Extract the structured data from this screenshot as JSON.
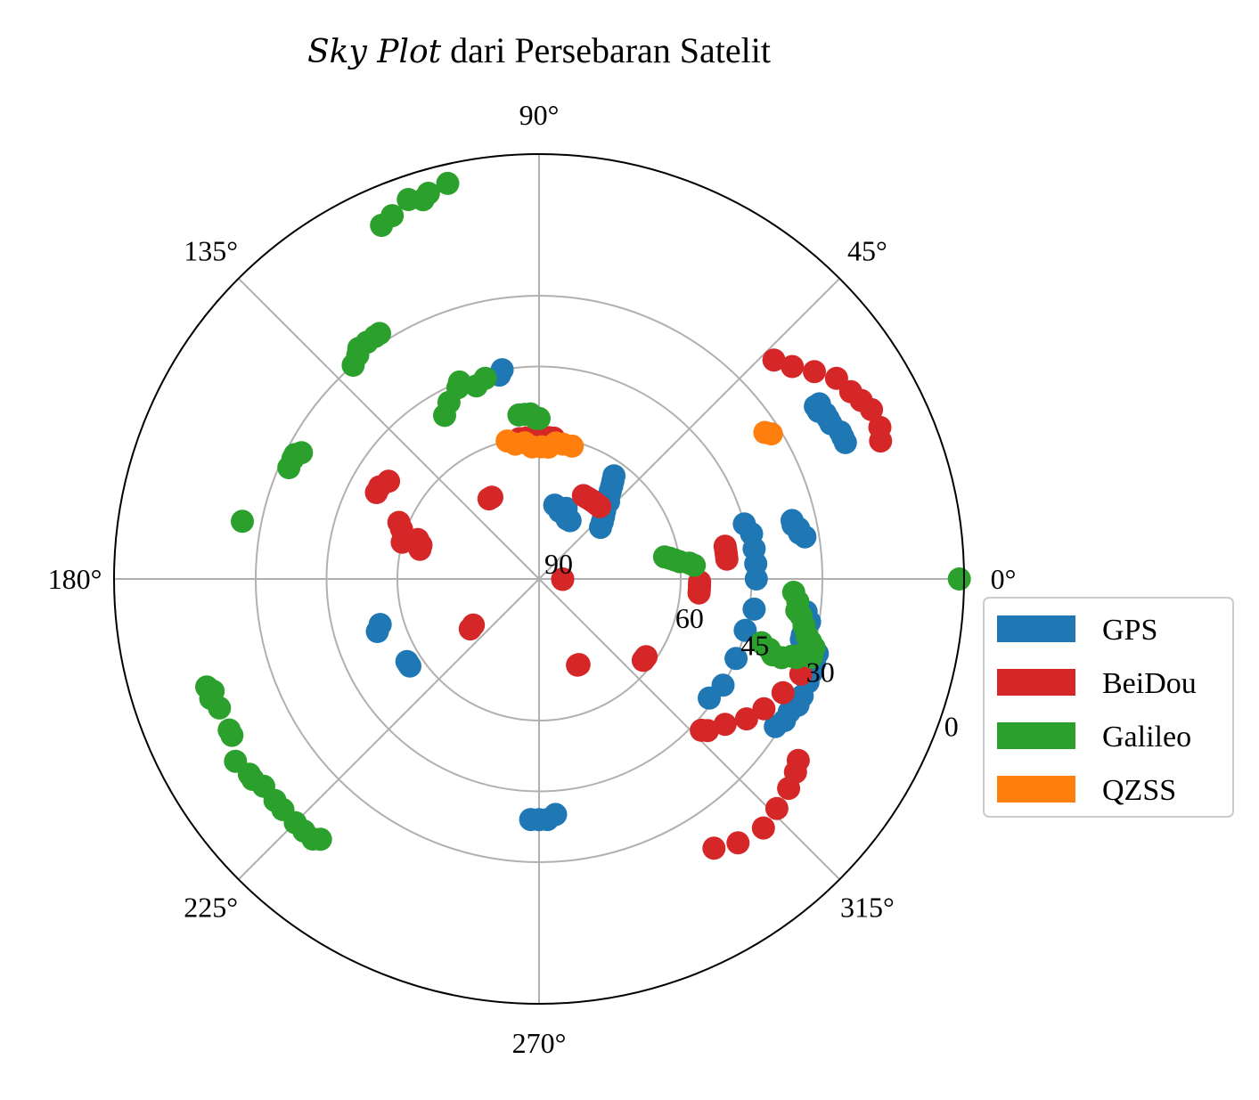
{
  "chart_data": {
    "type": "scatter",
    "projection": "polar",
    "title_italic": "Sky Plot",
    "title_rest": " dari Persebaran Satelit",
    "theta_ticks": [
      {
        "deg": 0,
        "label": "0°"
      },
      {
        "deg": 45,
        "label": "45°"
      },
      {
        "deg": 90,
        "label": "90°"
      },
      {
        "deg": 135,
        "label": "135°"
      },
      {
        "deg": 180,
        "label": "180°"
      },
      {
        "deg": 225,
        "label": "225°"
      },
      {
        "deg": 270,
        "label": "270°"
      },
      {
        "deg": 315,
        "label": "315°"
      }
    ],
    "r_ticks": [
      {
        "elev": 90,
        "label": "90"
      },
      {
        "elev": 60,
        "label": "60"
      },
      {
        "elev": 45,
        "label": "45"
      },
      {
        "elev": 30,
        "label": "30"
      },
      {
        "elev": 0,
        "label": "0"
      }
    ],
    "r_tick_label_angle_deg": -22.5,
    "grid_rings_elev": [
      60,
      45,
      30
    ],
    "grid": true,
    "legend_position": "right",
    "series": [
      {
        "name": "GPS",
        "color": "#1f77b4",
        "tracks": [
          [
            [
              24,
              19
            ],
            [
              25,
              19
            ],
            [
              26,
              19
            ],
            [
              28,
              20
            ],
            [
              29,
              20
            ],
            [
              30,
              20
            ],
            [
              31,
              21
            ],
            [
              32,
              20
            ],
            [
              32,
              21
            ]
          ],
          [
            [
              9,
              33
            ],
            [
              10,
              34
            ],
            [
              11,
              34
            ],
            [
              12,
              35
            ],
            [
              13,
              35
            ]
          ],
          [
            [
              -7,
              33
            ],
            [
              -9,
              32
            ],
            [
              -10,
              33
            ],
            [
              -12,
              33
            ],
            [
              -13,
              33
            ]
          ],
          [
            [
              -15,
              29
            ],
            [
              -17,
              29
            ],
            [
              -19,
              29
            ],
            [
              -21,
              29
            ],
            [
              -24,
              29
            ],
            [
              -26,
              29
            ],
            [
              -28,
              30
            ],
            [
              -30,
              30
            ],
            [
              -32,
              31
            ]
          ],
          [
            [
              268,
              39
            ],
            [
              270,
              39
            ],
            [
              272,
              39
            ],
            [
              274,
              40
            ]
          ],
          [
            [
              214,
              57
            ],
            [
              213,
              57
            ],
            [
              212,
              57
            ]
          ],
          [
            [
              198,
              54
            ],
            [
              196,
              55
            ]
          ],
          [
            [
              100,
              45
            ],
            [
              101,
              46
            ]
          ],
          [
            [
              15,
              45
            ],
            [
              12,
              44
            ],
            [
              8,
              44
            ],
            [
              4,
              44
            ],
            [
              0,
              44
            ]
          ],
          [
            [
              -8,
              44
            ],
            [
              -14,
              45
            ],
            [
              -22,
              45
            ],
            [
              -30,
              45
            ],
            [
              -35,
              46
            ]
          ],
          [
            [
              62,
              76
            ],
            [
              65,
              76
            ],
            [
              69,
              74
            ],
            [
              73,
              75
            ],
            [
              78,
              74
            ]
          ],
          [
            [
              40,
              73
            ],
            [
              42,
              72
            ],
            [
              44,
              71
            ],
            [
              46,
              70
            ],
            [
              48,
              68
            ],
            [
              50,
              67
            ],
            [
              51,
              66
            ],
            [
              52,
              65
            ],
            [
              53,
              64
            ],
            [
              54,
              63
            ]
          ]
        ]
      },
      {
        "name": "BeiDou",
        "color": "#d62728",
        "tracks": [
          [
            [
              50,
              70
            ],
            [
              52,
              70
            ],
            [
              54,
              70
            ],
            [
              56,
              70
            ],
            [
              58,
              70
            ],
            [
              60,
              70
            ],
            [
              62,
              70
            ]
          ],
          [
            [
              84,
              60
            ],
            [
              86,
              60
            ],
            [
              89,
              60
            ],
            [
              92,
              60
            ],
            [
              95,
              60
            ],
            [
              98,
              60
            ]
          ],
          [
            [
              120,
              70
            ],
            [
              122,
              70
            ]
          ],
          [
            [
              147,
              52
            ],
            [
              150,
              51
            ],
            [
              152,
              51
            ]
          ],
          [
            [
              162,
              63
            ],
            [
              164,
              64
            ],
            [
              166,
              64
            ]
          ],
          [
            [
              165,
              60
            ],
            [
              163,
              60
            ],
            [
              160,
              59
            ],
            [
              158,
              58
            ]
          ],
          [
            [
              216,
              72
            ],
            [
              215,
              73
            ]
          ],
          [
            [
              10,
              50
            ],
            [
              9,
              50
            ],
            [
              8,
              50
            ],
            [
              7,
              50
            ],
            [
              6,
              50
            ]
          ],
          [
            [
              -1,
              56
            ],
            [
              -2,
              56
            ],
            [
              -3,
              56
            ],
            [
              -4,
              56
            ],
            [
              -5,
              56
            ]
          ],
          [
            [
              -1,
              85
            ],
            [
              0,
              85
            ]
          ],
          [
            [
              -66,
              70
            ],
            [
              -65,
              70
            ]
          ],
          [
            [
              -38,
              62
            ],
            [
              -37,
              62
            ],
            [
              -36,
              62
            ]
          ],
          [
            [
              -43,
              43
            ],
            [
              -42,
              42
            ],
            [
              -38,
              40
            ],
            [
              -34,
              37
            ],
            [
              -30,
              35
            ],
            [
              -25,
              33
            ],
            [
              -20,
              31
            ]
          ],
          [
            [
              -57,
              22
            ],
            [
              -53,
              20
            ],
            [
              -48,
              19
            ],
            [
              -44,
              20
            ],
            [
              -40,
              21
            ],
            [
              -37,
              22
            ],
            [
              -35,
              23
            ]
          ],
          [
            [
              43,
              22
            ],
            [
              40,
              20
            ],
            [
              37,
              17
            ],
            [
              34,
              14
            ],
            [
              31,
              13
            ],
            [
              29,
              12
            ],
            [
              27,
              11
            ],
            [
              24,
              11
            ],
            [
              22,
              12
            ]
          ]
        ]
      },
      {
        "name": "Galileo",
        "color": "#2ca02c",
        "tracks": [
          [
            [
              90,
              56
            ],
            [
              91,
              56
            ],
            [
              93,
              55
            ],
            [
              95,
              55
            ],
            [
              97,
              55
            ]
          ],
          [
            [
              120,
              50
            ],
            [
              117,
              48
            ],
            [
              113,
              46
            ],
            [
              112,
              45
            ],
            [
              108,
              47
            ],
            [
              105,
              46
            ]
          ],
          [
            [
              131,
              30
            ],
            [
              129,
              29
            ],
            [
              128,
              28
            ],
            [
              126,
              28
            ],
            [
              124,
              28
            ],
            [
              123,
              28
            ]
          ],
          [
            [
              156,
              32
            ],
            [
              154,
              32
            ],
            [
              153,
              32
            ],
            [
              152,
              33
            ]
          ],
          [
            [
              169,
              26
            ]
          ],
          [
            [
              114,
              8
            ],
            [
              112,
              7
            ],
            [
              109,
              5
            ],
            [
              107,
              6
            ],
            [
              106,
              5
            ],
            [
              103,
              4
            ]
          ],
          [
            [
              198,
              16
            ],
            [
              199,
              17
            ],
            [
              200,
              16
            ],
            [
              202,
              17
            ]
          ],
          [
            [
              206,
              17
            ],
            [
              207,
              17
            ]
          ],
          [
            [
              211,
              15
            ],
            [
              214,
              16
            ],
            [
              215,
              16
            ],
            [
              217,
              17
            ],
            [
              220,
              17
            ],
            [
              222,
              17
            ],
            [
              225,
              17
            ],
            [
              227,
              17
            ],
            [
              229,
              17
            ],
            [
              230,
              18
            ]
          ],
          [
            [
              10,
              63
            ],
            [
              9,
              62
            ],
            [
              8,
              61
            ],
            [
              7,
              60
            ],
            [
              6,
              58
            ],
            [
              5,
              57
            ]
          ],
          [
            [
              -3,
              36
            ],
            [
              -5,
              35
            ],
            [
              -7,
              35
            ],
            [
              -8,
              34
            ],
            [
              -10,
              33
            ],
            [
              -12,
              32
            ],
            [
              -13,
              31
            ],
            [
              -14,
              30
            ]
          ],
          [
            [
              -16,
              41
            ],
            [
              -17,
              39
            ],
            [
              -18,
              38
            ],
            [
              -18,
              36
            ],
            [
              -17,
              34
            ],
            [
              -17,
              33
            ],
            [
              -16,
              32
            ],
            [
              -16,
              30
            ]
          ],
          [
            [
              0,
              1
            ]
          ]
        ]
      },
      {
        "name": "QZSS",
        "color": "#ff7f0e",
        "tracks": [
          [
            [
              103,
              60
            ],
            [
              100,
              61
            ],
            [
              96,
              61
            ],
            [
              93,
              62
            ],
            [
              89,
              62
            ],
            [
              86,
              62
            ],
            [
              83,
              61
            ],
            [
              80,
              61
            ],
            [
              76,
              61
            ]
          ],
          [
            [
              33,
              33
            ],
            [
              32,
              32
            ]
          ]
        ]
      }
    ]
  }
}
